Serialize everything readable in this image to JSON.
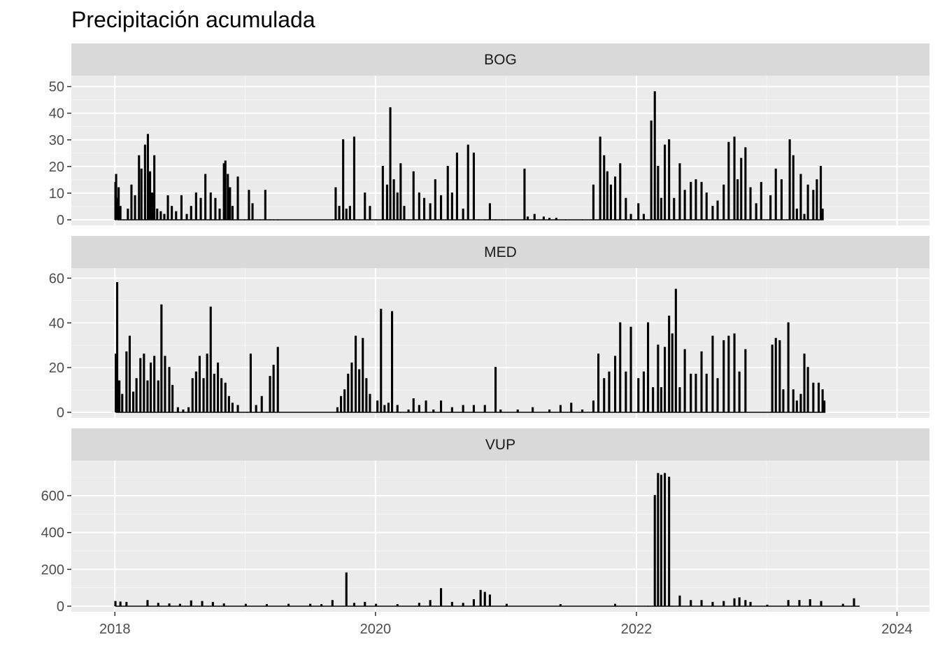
{
  "chart_data": {
    "type": "line",
    "title": "Precipitación acumulada",
    "xlabel": "",
    "ylabel": "",
    "x_ticks": [
      "2018",
      "2020",
      "2022",
      "2024"
    ],
    "x_range": [
      "2017-09-01",
      "2024-04-01"
    ],
    "grid": true,
    "facets": [
      {
        "name": "BOG",
        "ylim": [
          0,
          52
        ],
        "y_ticks": [
          0,
          10,
          20,
          30,
          40,
          50
        ],
        "series": [
          {
            "x": [
              "2018-01-01",
              "2018-01-03",
              "2018-01-06",
              "2018-01-10",
              "2018-01-15",
              "2018-01-25",
              "2018-02-05",
              "2018-02-15",
              "2018-02-25",
              "2018-03-08",
              "2018-03-15",
              "2018-03-25",
              "2018-04-02",
              "2018-04-08",
              "2018-04-14",
              "2018-04-20",
              "2018-04-28",
              "2018-05-08",
              "2018-05-18",
              "2018-05-28",
              "2018-06-08",
              "2018-06-20",
              "2018-07-05",
              "2018-07-20",
              "2018-08-01",
              "2018-08-15",
              "2018-08-28",
              "2018-09-10",
              "2018-09-25",
              "2018-10-08",
              "2018-10-20",
              "2018-11-01",
              "2018-11-05",
              "2018-11-12",
              "2018-11-18",
              "2018-11-25",
              "2018-12-10",
              "2018-12-28",
              "2019-01-10",
              "2019-01-20",
              "2019-02-10",
              "2019-02-25",
              "2019-03-10",
              "2019-03-20",
              "2019-04-01",
              "2019-09-01",
              "2019-09-10",
              "2019-09-20",
              "2019-10-01",
              "2019-10-10",
              "2019-10-20",
              "2019-11-01",
              "2019-11-15",
              "2019-12-01",
              "2019-12-15",
              "2020-01-01",
              "2020-01-20",
              "2020-02-01",
              "2020-02-10",
              "2020-02-20",
              "2020-03-01",
              "2020-03-10",
              "2020-03-20",
              "2020-04-01",
              "2020-04-15",
              "2020-05-01",
              "2020-05-15",
              "2020-06-01",
              "2020-06-15",
              "2020-07-01",
              "2020-07-20",
              "2020-08-01",
              "2020-08-15",
              "2020-09-01",
              "2020-09-15",
              "2020-10-01",
              "2020-10-15",
              "2020-11-01",
              "2020-11-15",
              "2020-12-01",
              "2020-12-20",
              "2021-02-20",
              "2021-03-01",
              "2021-03-20",
              "2021-04-15",
              "2021-05-01",
              "2021-05-20",
              "2021-06-15",
              "2021-08-01",
              "2021-09-01",
              "2021-09-20",
              "2021-10-01",
              "2021-10-10",
              "2021-10-20",
              "2021-11-01",
              "2021-11-15",
              "2021-12-01",
              "2021-12-15",
              "2022-01-05",
              "2022-01-20",
              "2022-02-01",
              "2022-02-10",
              "2022-02-20",
              "2022-03-01",
              "2022-03-10",
              "2022-03-20",
              "2022-04-01",
              "2022-04-15",
              "2022-05-01",
              "2022-05-15",
              "2022-06-01",
              "2022-06-15",
              "2022-07-01",
              "2022-07-15",
              "2022-08-01",
              "2022-08-15",
              "2022-09-01",
              "2022-09-15",
              "2022-10-01",
              "2022-10-10",
              "2022-10-20",
              "2022-11-01",
              "2022-11-15",
              "2022-12-01",
              "2022-12-15",
              "2023-01-10",
              "2023-01-25",
              "2023-02-10",
              "2023-02-25",
              "2023-03-05",
              "2023-03-15",
              "2023-03-25",
              "2023-04-05",
              "2023-04-15",
              "2023-04-25",
              "2023-05-10",
              "2023-05-20",
              "2023-05-31",
              "2023-06-05"
            ],
            "y": [
              14,
              17,
              8,
              12,
              5,
              0,
              4,
              13,
              9,
              24,
              19,
              28,
              32,
              18,
              10,
              24,
              4,
              3,
              2,
              9,
              5,
              3,
              9,
              2,
              5,
              10,
              8,
              17,
              10,
              8,
              4,
              21,
              22,
              17,
              12,
              5,
              16,
              0,
              11,
              6,
              0,
              11,
              0,
              0,
              0,
              0,
              12,
              5,
              30,
              4,
              5,
              31,
              0,
              10,
              5,
              0,
              20,
              13,
              42,
              15,
              10,
              21,
              5,
              0,
              18,
              10,
              8,
              6,
              15,
              9,
              20,
              10,
              25,
              4,
              28,
              25,
              0,
              0,
              6,
              0,
              0,
              19,
              1,
              2,
              1,
              0.5,
              0.5,
              0,
              0,
              13,
              31,
              24,
              18,
              13,
              16,
              21,
              8,
              2,
              6,
              2,
              0,
              37,
              48,
              20,
              8,
              28,
              30,
              8,
              21,
              11,
              14,
              15,
              14,
              10,
              5,
              7,
              13,
              29,
              31,
              15,
              23,
              27,
              12,
              6,
              14,
              9,
              19,
              15,
              0,
              30,
              24,
              4,
              17,
              2,
              13,
              11,
              15,
              20,
              4
            ],
            "sparse": true
          }
        ]
      },
      {
        "name": "MED",
        "ylim": [
          0,
          62
        ],
        "y_ticks": [
          0,
          20,
          40,
          60
        ],
        "series": [
          {
            "x": [
              "2018-01-02",
              "2018-01-06",
              "2018-01-12",
              "2018-01-20",
              "2018-02-01",
              "2018-02-10",
              "2018-02-20",
              "2018-03-01",
              "2018-03-12",
              "2018-03-22",
              "2018-04-01",
              "2018-04-10",
              "2018-04-20",
              "2018-05-01",
              "2018-05-10",
              "2018-05-20",
              "2018-06-01",
              "2018-06-10",
              "2018-06-25",
              "2018-07-10",
              "2018-07-25",
              "2018-08-05",
              "2018-08-15",
              "2018-08-25",
              "2018-09-05",
              "2018-09-15",
              "2018-09-25",
              "2018-10-05",
              "2018-10-15",
              "2018-10-25",
              "2018-11-05",
              "2018-11-15",
              "2018-11-25",
              "2018-12-10",
              "2019-01-05",
              "2019-01-15",
              "2019-01-30",
              "2019-02-15",
              "2019-03-01",
              "2019-03-10",
              "2019-03-20",
              "2019-04-01",
              "2019-09-15",
              "2019-09-25",
              "2019-10-05",
              "2019-10-15",
              "2019-10-25",
              "2019-11-05",
              "2019-11-15",
              "2019-11-25",
              "2019-12-05",
              "2019-12-15",
              "2020-01-05",
              "2020-01-15",
              "2020-01-25",
              "2020-02-05",
              "2020-02-15",
              "2020-03-01",
              "2020-03-10",
              "2020-04-01",
              "2020-04-15",
              "2020-05-01",
              "2020-05-20",
              "2020-06-10",
              "2020-07-01",
              "2020-08-01",
              "2020-09-01",
              "2020-10-01",
              "2020-11-01",
              "2020-12-01",
              "2020-12-15",
              "2021-02-01",
              "2021-03-15",
              "2021-05-01",
              "2021-06-01",
              "2021-07-01",
              "2021-08-01",
              "2021-09-01",
              "2021-09-15",
              "2021-10-01",
              "2021-10-15",
              "2021-11-01",
              "2021-11-15",
              "2021-12-01",
              "2021-12-15",
              "2022-01-05",
              "2022-01-20",
              "2022-02-01",
              "2022-02-15",
              "2022-03-01",
              "2022-03-10",
              "2022-03-20",
              "2022-04-01",
              "2022-04-10",
              "2022-04-20",
              "2022-05-01",
              "2022-05-15",
              "2022-06-01",
              "2022-06-15",
              "2022-07-01",
              "2022-07-15",
              "2022-08-01",
              "2022-08-15",
              "2022-09-01",
              "2022-09-15",
              "2022-10-01",
              "2022-10-15",
              "2022-11-01",
              "2023-01-15",
              "2023-01-25",
              "2023-02-05",
              "2023-02-15",
              "2023-03-01",
              "2023-03-15",
              "2023-03-25",
              "2023-04-05",
              "2023-04-15",
              "2023-04-25",
              "2023-05-10",
              "2023-05-25",
              "2023-06-05",
              "2023-06-10"
            ],
            "y": [
              26,
              58,
              14,
              8,
              27,
              34,
              9,
              15,
              24,
              26,
              14,
              22,
              25,
              14,
              48,
              25,
              20,
              12,
              2,
              1,
              2,
              15,
              18,
              25,
              15,
              26,
              47,
              17,
              22,
              15,
              13,
              7,
              4,
              3,
              0,
              26,
              3,
              7,
              0,
              16,
              21,
              29,
              2,
              7,
              10,
              17,
              22,
              34,
              19,
              33,
              15,
              8,
              5,
              46,
              3,
              4,
              45,
              3,
              0,
              1,
              6,
              3,
              5,
              1,
              5,
              2,
              3,
              3,
              3,
              20,
              1,
              1,
              2,
              1,
              3,
              4,
              1,
              5,
              26,
              15,
              18,
              25,
              40,
              18,
              38,
              15,
              18,
              40,
              11,
              30,
              11,
              29,
              43,
              35,
              55,
              11,
              28,
              17,
              17,
              27,
              17,
              34,
              15,
              32,
              34,
              35,
              18,
              28,
              30,
              33,
              32,
              10,
              40,
              10,
              5,
              8,
              26,
              20,
              13,
              13,
              10,
              5
            ],
            "sparse": true
          }
        ]
      },
      {
        "name": "VUP",
        "ylim": [
          0,
          760
        ],
        "y_ticks": [
          0,
          200,
          400,
          600
        ],
        "series": [
          {
            "x": [
              "2018-01-01",
              "2018-01-15",
              "2018-02-01",
              "2018-04-01",
              "2018-05-01",
              "2018-06-01",
              "2018-07-01",
              "2018-08-01",
              "2018-09-01",
              "2018-10-01",
              "2018-11-01",
              "2019-01-01",
              "2019-03-01",
              "2019-05-01",
              "2019-07-01",
              "2019-08-01",
              "2019-09-01",
              "2019-10-10",
              "2019-11-01",
              "2019-12-01",
              "2020-01-01",
              "2020-03-01",
              "2020-05-01",
              "2020-06-01",
              "2020-07-01",
              "2020-08-01",
              "2020-09-01",
              "2020-10-01",
              "2020-10-20",
              "2020-11-01",
              "2020-11-15",
              "2021-01-01",
              "2021-06-01",
              "2021-11-01",
              "2022-02-01",
              "2022-02-20",
              "2022-03-01",
              "2022-03-10",
              "2022-03-20",
              "2022-04-01",
              "2022-04-10",
              "2022-05-01",
              "2022-06-01",
              "2022-07-01",
              "2022-08-01",
              "2022-09-01",
              "2022-10-01",
              "2022-10-15",
              "2022-11-01",
              "2022-11-15",
              "2023-01-01",
              "2023-03-01",
              "2023-04-01",
              "2023-05-01",
              "2023-06-01",
              "2023-08-01",
              "2023-09-01",
              "2023-09-15"
            ],
            "y": [
              25,
              22,
              20,
              30,
              15,
              12,
              10,
              28,
              25,
              20,
              12,
              10,
              8,
              10,
              10,
              8,
              30,
              180,
              15,
              20,
              10,
              8,
              15,
              30,
              95,
              20,
              15,
              35,
              85,
              75,
              60,
              10,
              8,
              10,
              0,
              600,
              720,
              710,
              720,
              700,
              0,
              55,
              30,
              30,
              20,
              25,
              40,
              45,
              30,
              20,
              5,
              30,
              30,
              35,
              25,
              10,
              40,
              0
            ],
            "sparse": true
          }
        ]
      }
    ]
  }
}
